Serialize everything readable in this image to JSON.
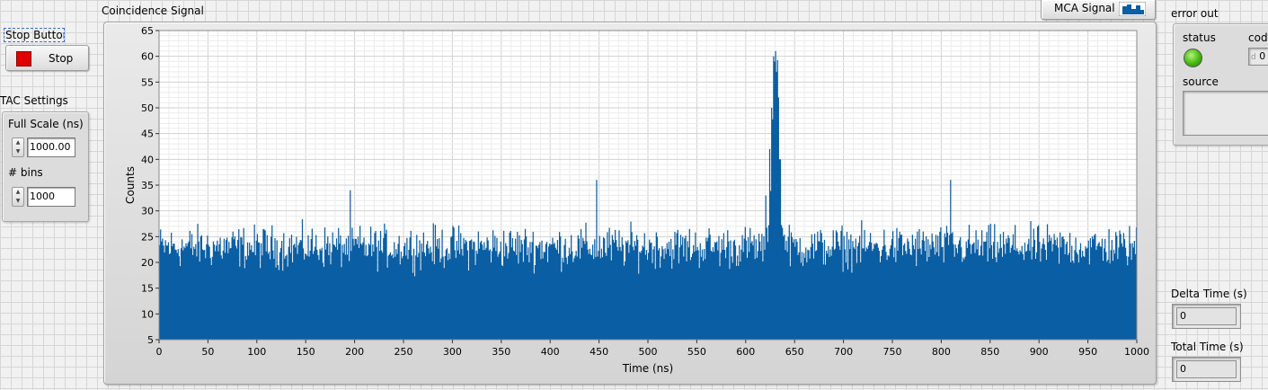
{
  "stop": {
    "caption": "Stop Button",
    "button_label": "Stop",
    "color": "#e00000"
  },
  "tac": {
    "title": "TAC Settings",
    "full_scale_label": "Full Scale (ns)",
    "full_scale_value": "1000.00",
    "bins_label": "# bins",
    "bins_value": "1000"
  },
  "plot": {
    "title": "Coincidence Signal",
    "legend_label": "MCA Signal"
  },
  "error_out": {
    "title": "error out",
    "status_label": "status",
    "code_label": "code",
    "code_prefix": "d",
    "code_value": "0",
    "source_label": "source",
    "status_color": "#44b80f"
  },
  "delta_time": {
    "label": "Delta Time (s)",
    "value": "0"
  },
  "total_time": {
    "label": "Total Time (s)",
    "value": "0"
  },
  "chart_data": {
    "type": "bar",
    "title": "",
    "xlabel": "Time (ns)",
    "ylabel": "Counts",
    "xlim": [
      0,
      1000
    ],
    "ylim": [
      5,
      65
    ],
    "xticks": [
      0,
      50,
      100,
      150,
      200,
      250,
      300,
      350,
      400,
      450,
      500,
      550,
      600,
      650,
      700,
      750,
      800,
      850,
      900,
      950,
      1000
    ],
    "yticks": [
      5,
      10,
      15,
      20,
      25,
      30,
      35,
      40,
      45,
      50,
      55,
      60,
      65
    ],
    "grid": true,
    "color": "#0a5ea3",
    "bin_width_ns": 1,
    "baseline_range": [
      13,
      30
    ],
    "notable_values": [
      {
        "x": 195,
        "y": 34
      },
      {
        "x": 447,
        "y": 36
      },
      {
        "x": 809,
        "y": 36
      },
      {
        "x": 620,
        "y": 33
      },
      {
        "x": 624,
        "y": 42
      },
      {
        "x": 626,
        "y": 50
      },
      {
        "x": 628,
        "y": 60
      },
      {
        "x": 629,
        "y": 59
      },
      {
        "x": 630,
        "y": 61
      },
      {
        "x": 631,
        "y": 57
      },
      {
        "x": 633,
        "y": 52
      },
      {
        "x": 635,
        "y": 40
      }
    ],
    "peak": {
      "center_ns": 630,
      "max_counts": 61
    }
  }
}
